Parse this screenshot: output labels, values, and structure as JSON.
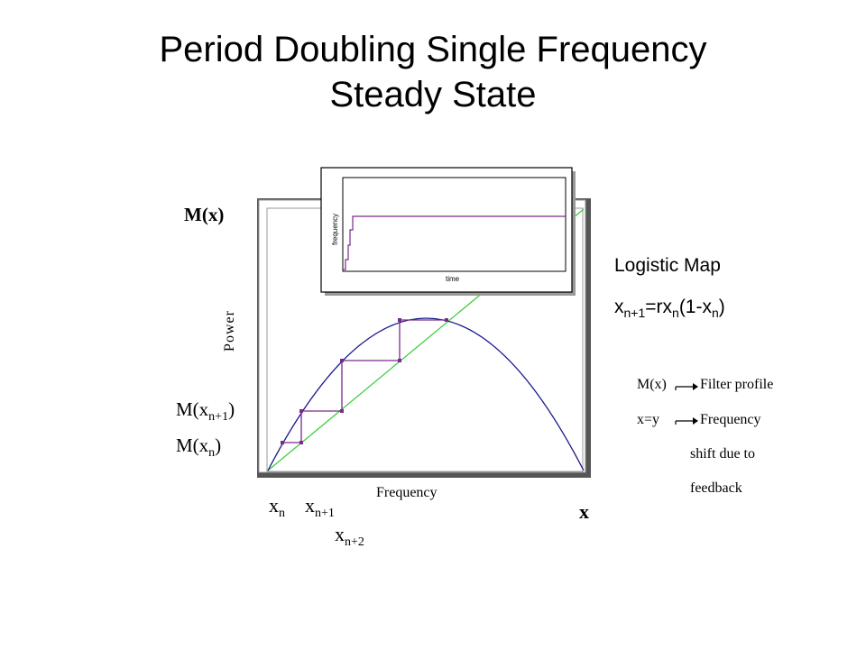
{
  "slide": {
    "title_line1": "Period Doubling Single Frequency",
    "title_line2": "Steady State"
  },
  "plot": {
    "y_label": "M(x)",
    "x_label": "x",
    "power_label": "Power",
    "frequency_label": "Frequency",
    "m_xn1_main": "M(x",
    "m_xn1_sub": "n+1",
    "m_xn1_close": ")",
    "m_xn_main": "M(x",
    "m_xn_sub": "n",
    "m_xn_close": ")",
    "xn_main": "x",
    "xn_sub": "n",
    "xn1_main": "x",
    "xn1_sub": "n+1",
    "xn2_main": "x",
    "xn2_sub": "n+2",
    "colors": {
      "curve": "#1a1a8c",
      "diagonal": "#33cc33",
      "cobweb": "#7a2a8c"
    }
  },
  "inset": {
    "y_label": "frequency",
    "x_label": "time",
    "color": "#7a2a8c"
  },
  "logistic": {
    "heading": "Logistic Map",
    "eq_a": "x",
    "eq_a_sub": "n+1",
    "eq_b": "=rx",
    "eq_b_sub": "n",
    "eq_c": "(1-x",
    "eq_c_sub": "n",
    "eq_d": ")"
  },
  "notes": {
    "row1_left": "M(x)",
    "row1_right": "Filter profile",
    "row2_left": "x=y",
    "row2_right": "Frequency",
    "row3": "shift due to",
    "row4": "feedback"
  }
}
